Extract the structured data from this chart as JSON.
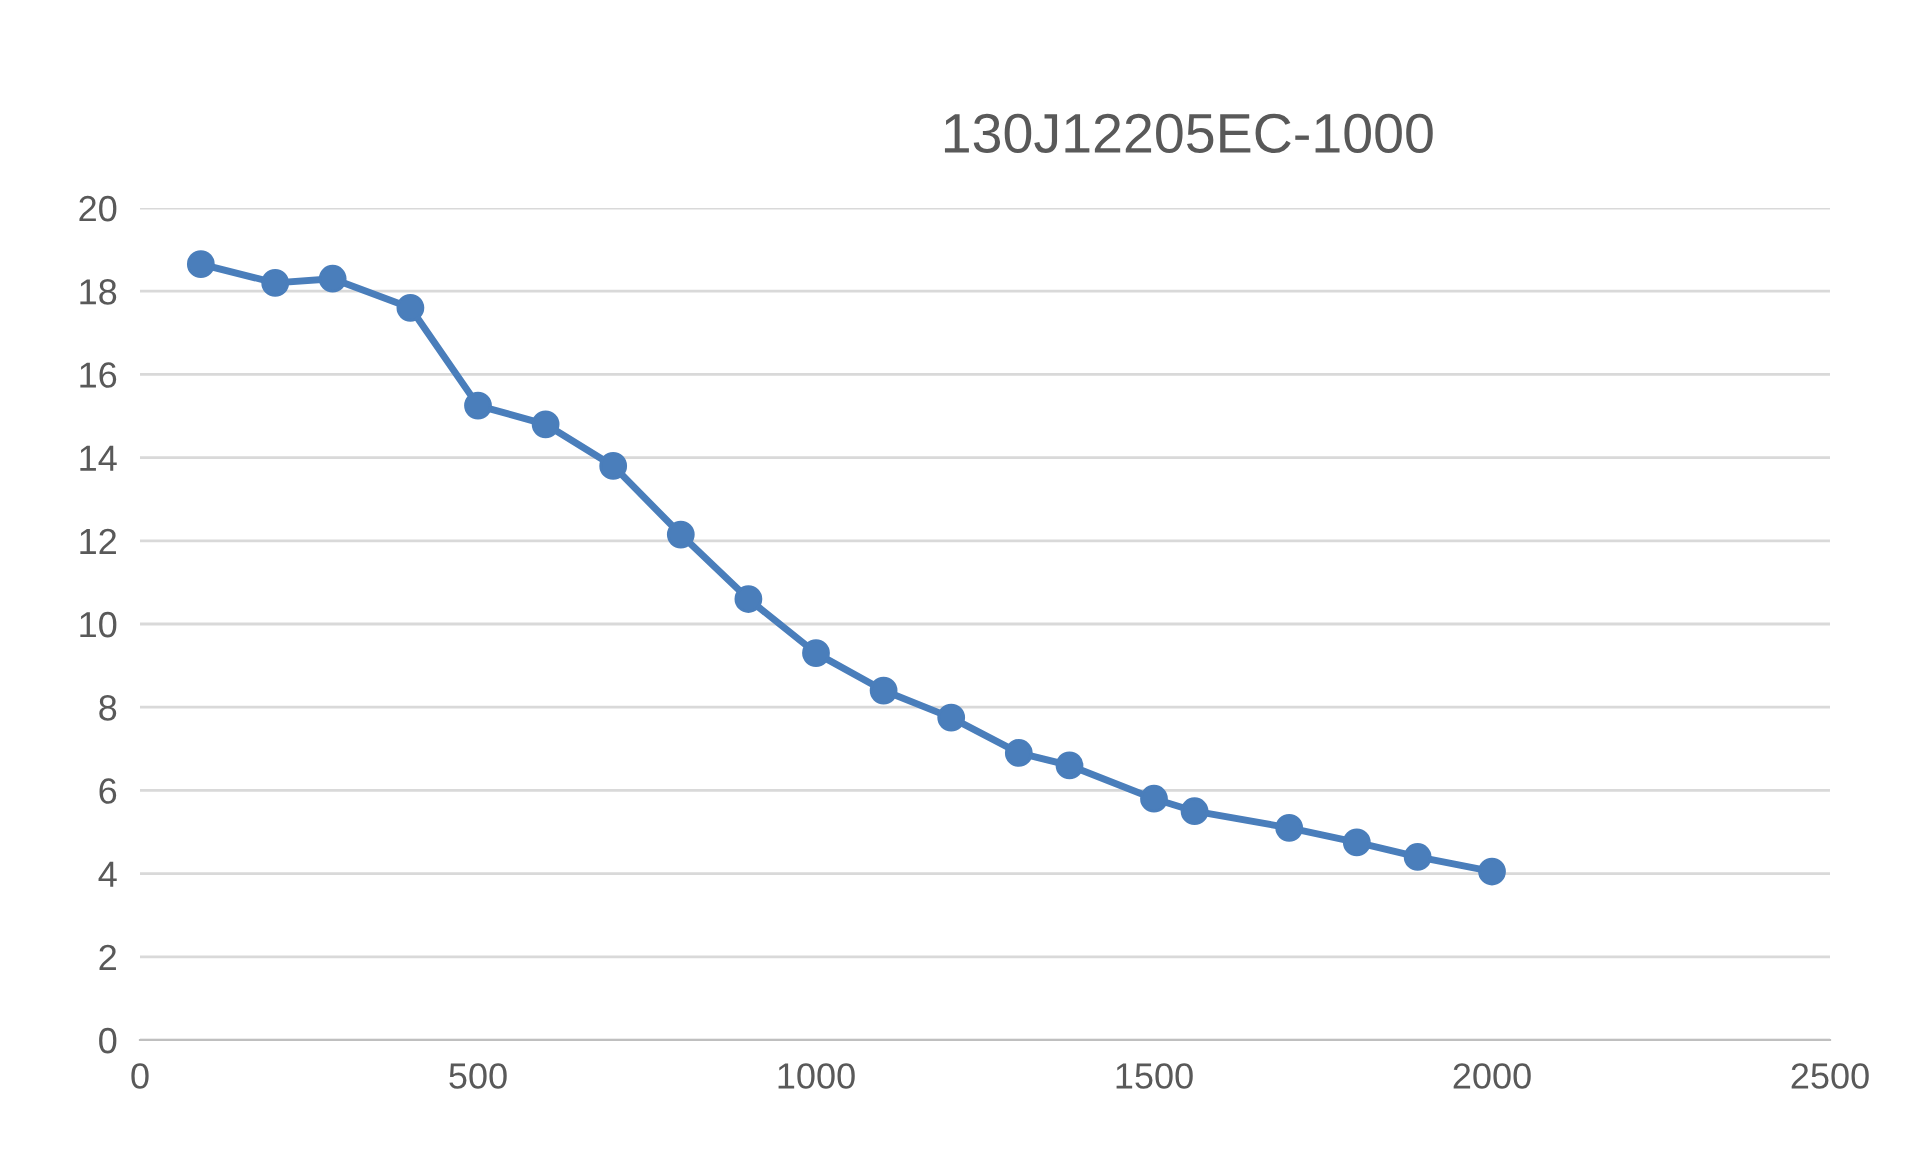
{
  "chart_data": {
    "type": "line",
    "title": "130J12205EC-1000",
    "x": [
      90,
      200,
      285,
      400,
      500,
      600,
      700,
      800,
      900,
      1000,
      1100,
      1200,
      1300,
      1375,
      1500,
      1560,
      1700,
      1800,
      1890,
      2000
    ],
    "series": [
      {
        "color": "#4a7ebb",
        "values": [
          18.65,
          18.2,
          18.3,
          17.6,
          15.25,
          14.8,
          13.8,
          12.15,
          10.6,
          9.3,
          8.4,
          7.75,
          6.9,
          6.6,
          5.8,
          5.5,
          5.1,
          4.75,
          4.4,
          4.05
        ]
      }
    ],
    "xlim": [
      0,
      2500
    ],
    "xticks": [
      0,
      500,
      1000,
      1500,
      2000,
      2500
    ],
    "ylim": [
      0,
      20
    ],
    "yticks": [
      0,
      2,
      4,
      6,
      8,
      10,
      12,
      14,
      16,
      18,
      20
    ],
    "grid": "y",
    "marker": "circle",
    "line_style": "solid"
  }
}
